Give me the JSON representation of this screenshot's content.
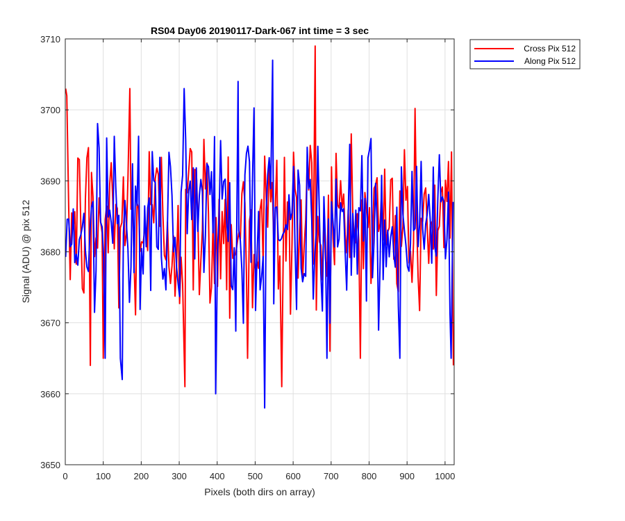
{
  "chart_data": {
    "type": "line",
    "title": "RS04 Day06 20190117-Dark-067 int time = 3 sec",
    "xlabel": "Pixels (both dirs on array)",
    "ylabel": "Signal (ADU) @ pix 512",
    "xlim": [
      0,
      1024
    ],
    "ylim": [
      3650,
      3710
    ],
    "xticks": [
      0,
      100,
      200,
      300,
      400,
      500,
      600,
      700,
      800,
      900,
      1000
    ],
    "yticks": [
      3650,
      3660,
      3670,
      3680,
      3690,
      3700,
      3710
    ],
    "grid": true,
    "legend_position": "outside-top-right",
    "noise_model": {
      "x_start": 1,
      "x_step": 4,
      "mean": 3684,
      "std": 7
    },
    "series": [
      {
        "name": "Cross Pix 512",
        "color": "#ff0000",
        "key_points": [
          {
            "x": 4,
            "y": 3702
          },
          {
            "x": 66,
            "y": 3664
          },
          {
            "x": 100,
            "y": 3665
          },
          {
            "x": 170,
            "y": 3703
          },
          {
            "x": 315,
            "y": 3661
          },
          {
            "x": 480,
            "y": 3665
          },
          {
            "x": 570,
            "y": 3661
          },
          {
            "x": 658,
            "y": 3709
          },
          {
            "x": 1022,
            "y": 3664
          }
        ]
      },
      {
        "name": "Along Pix 512",
        "color": "#0000ff",
        "key_points": [
          {
            "x": 150,
            "y": 3662
          },
          {
            "x": 396,
            "y": 3660
          },
          {
            "x": 455,
            "y": 3704
          },
          {
            "x": 525,
            "y": 3658
          },
          {
            "x": 546,
            "y": 3707
          },
          {
            "x": 1016,
            "y": 3665
          }
        ]
      }
    ]
  }
}
